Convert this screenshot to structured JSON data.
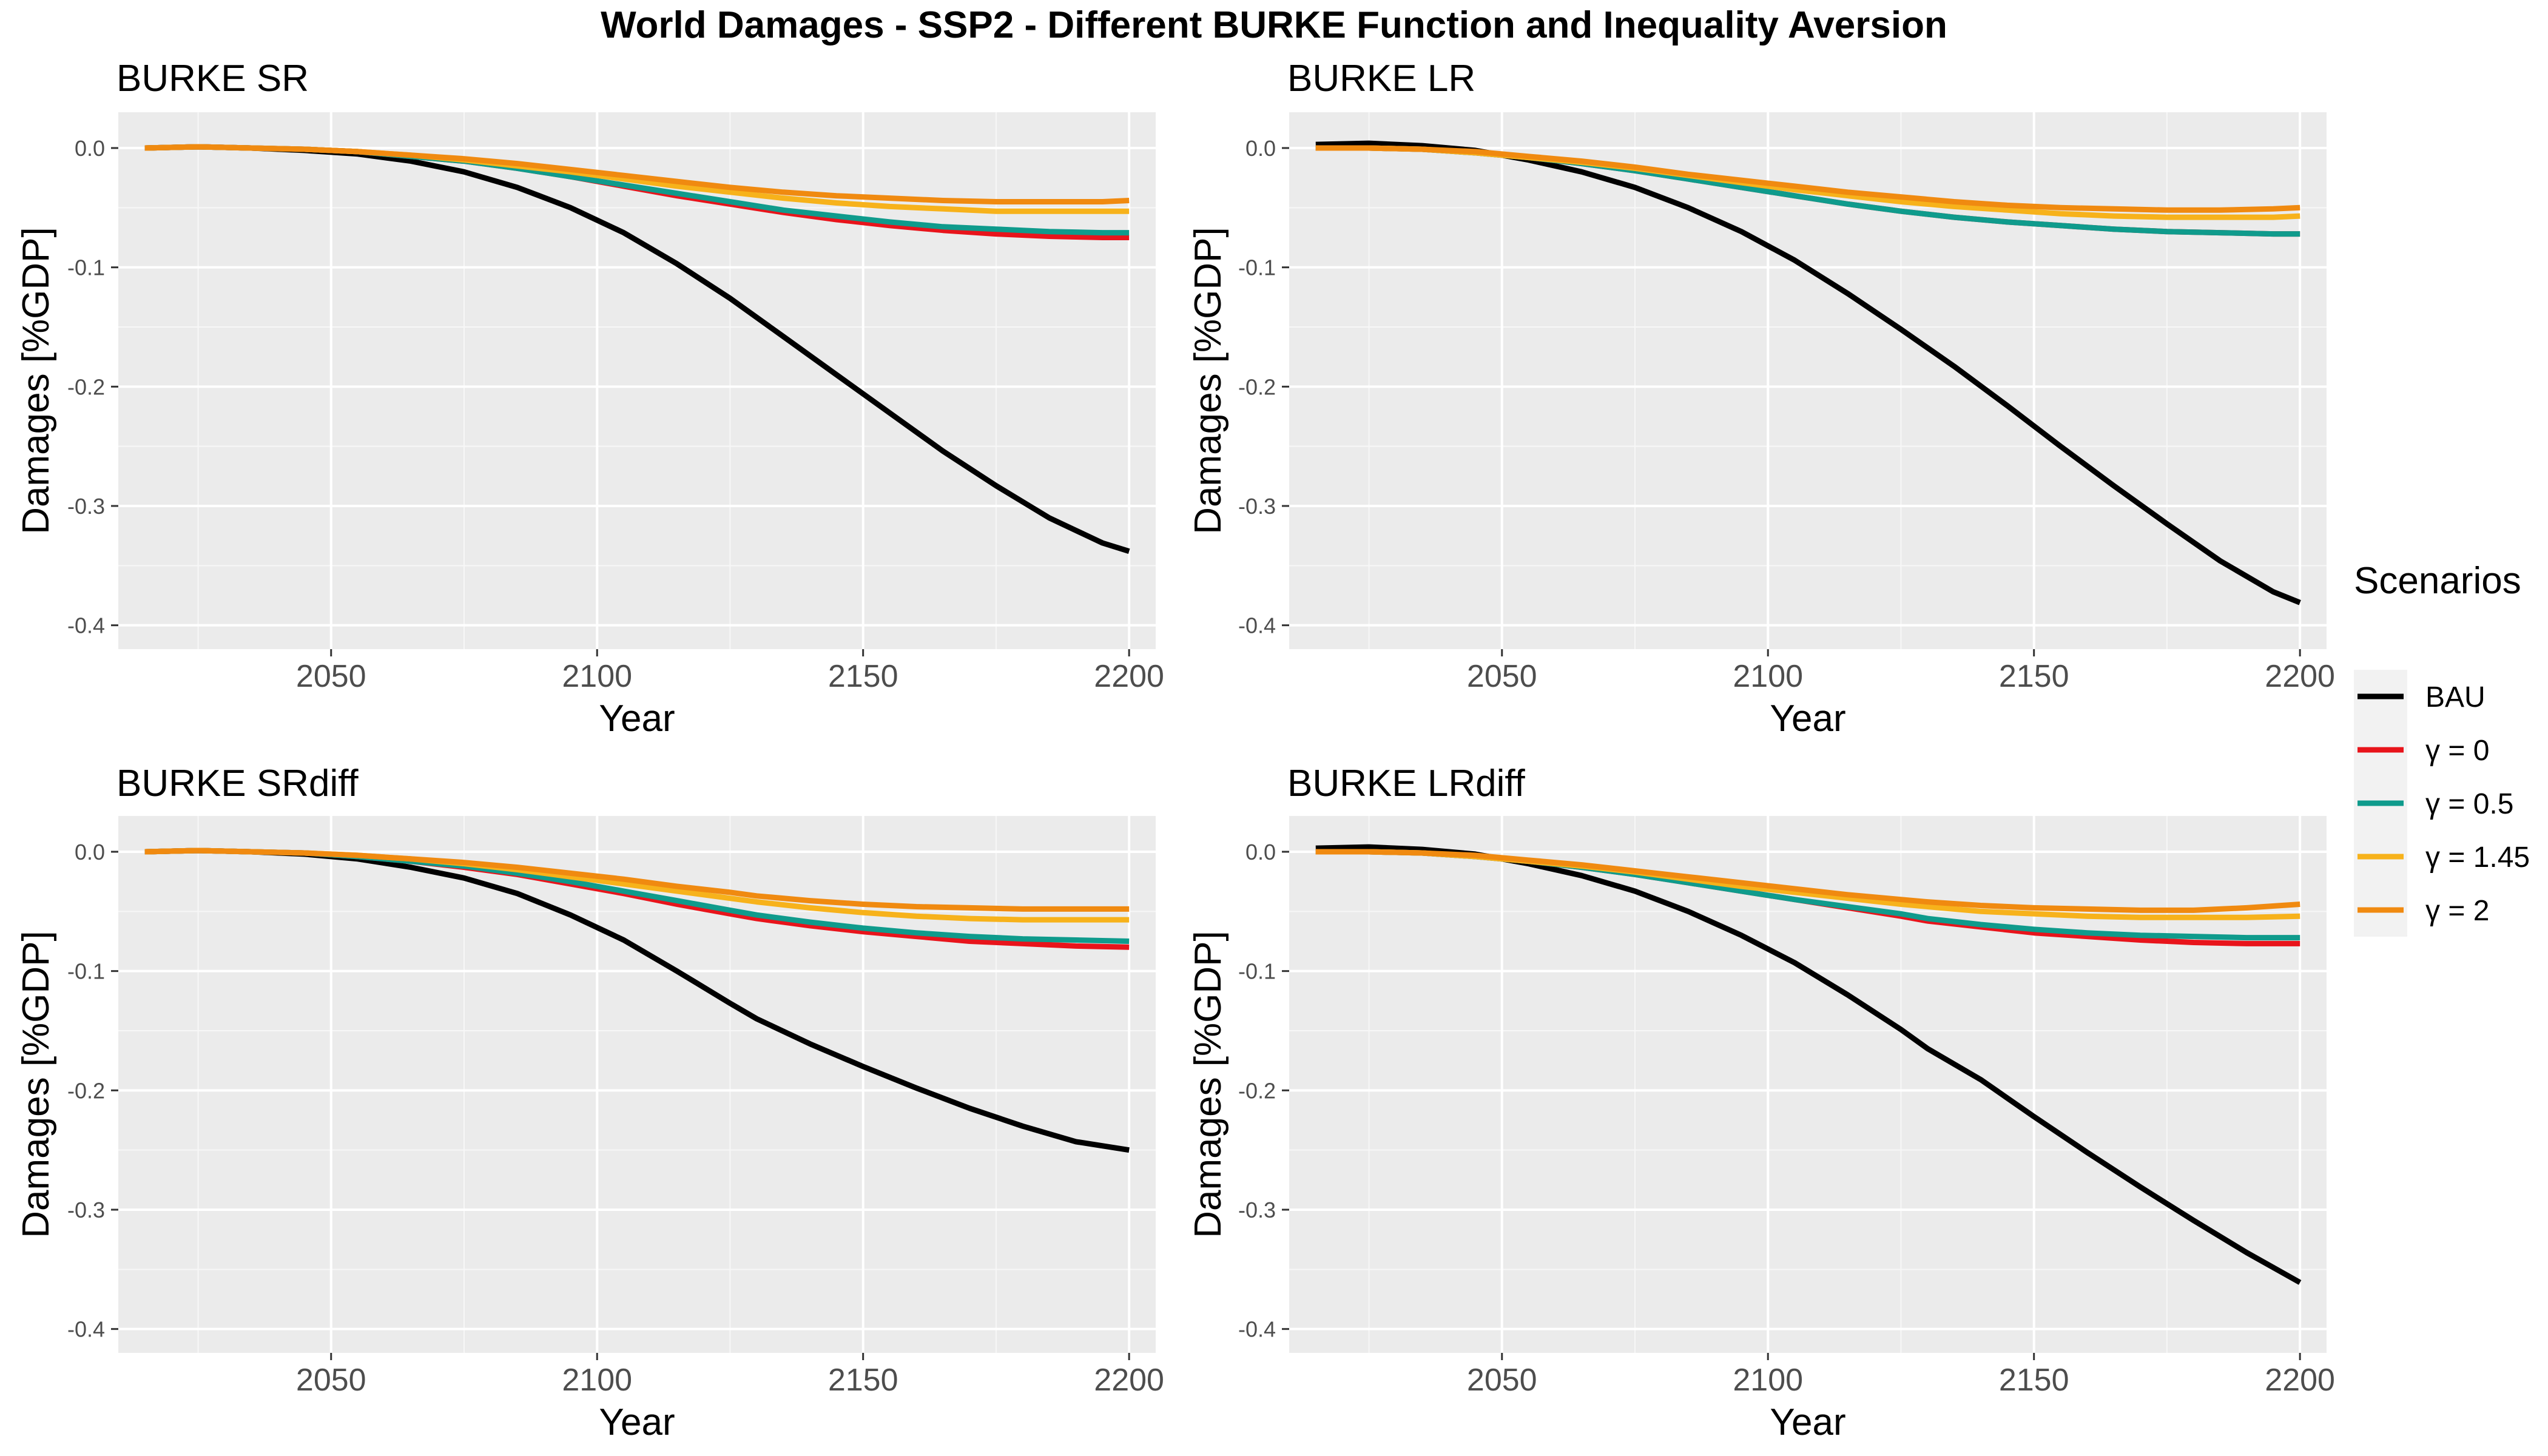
{
  "figure": {
    "title": "World Damages - SSP2 -  Different BURKE Function and Inequality Aversion"
  },
  "legend": {
    "title": "Scenarios",
    "entries": [
      {
        "label": "BAU",
        "color": "#000000"
      },
      {
        "label": "γ = 0",
        "color": "#E8141B"
      },
      {
        "label": "γ = 0.5",
        "color": "#0F9B8C"
      },
      {
        "label": "γ = 1.45",
        "color": "#F7B21B"
      },
      {
        "label": "γ = 2",
        "color": "#F08A10"
      }
    ]
  },
  "chart_data": [
    {
      "type": "line",
      "title": "BURKE SR",
      "xlabel": "Year",
      "ylabel": "Damages [%GDP]",
      "xlim": [
        2010,
        2205
      ],
      "ylim": [
        -0.42,
        0.03
      ],
      "x_ticks": [
        2050,
        2100,
        2150,
        2200
      ],
      "y_ticks": [
        0.0,
        -0.1,
        -0.2,
        -0.3,
        -0.4
      ],
      "x_tick_labels": [
        "2050",
        "2100",
        "2150",
        "2200"
      ],
      "y_tick_labels": [
        "0.0",
        "-0.1",
        "-0.2",
        "-0.3",
        "-0.4"
      ],
      "grid": true,
      "x": [
        2015,
        2025,
        2035,
        2045,
        2055,
        2065,
        2075,
        2085,
        2095,
        2105,
        2115,
        2125,
        2135,
        2145,
        2155,
        2165,
        2175,
        2185,
        2195,
        2200
      ],
      "series": [
        {
          "name": "BAU",
          "values": [
            0.0,
            0.001,
            0.0,
            -0.002,
            -0.005,
            -0.011,
            -0.02,
            -0.033,
            -0.05,
            -0.071,
            -0.097,
            -0.126,
            -0.158,
            -0.19,
            -0.222,
            -0.254,
            -0.283,
            -0.31,
            -0.331,
            -0.338
          ]
        },
        {
          "name": "γ = 0",
          "values": [
            0.0,
            0.001,
            0.0,
            -0.001,
            -0.003,
            -0.007,
            -0.011,
            -0.017,
            -0.024,
            -0.032,
            -0.04,
            -0.047,
            -0.054,
            -0.06,
            -0.065,
            -0.069,
            -0.072,
            -0.074,
            -0.075,
            -0.075
          ]
        },
        {
          "name": "γ = 0.5",
          "values": [
            0.0,
            0.001,
            0.0,
            -0.001,
            -0.003,
            -0.007,
            -0.011,
            -0.017,
            -0.024,
            -0.031,
            -0.038,
            -0.045,
            -0.052,
            -0.057,
            -0.062,
            -0.066,
            -0.068,
            -0.07,
            -0.071,
            -0.071
          ]
        },
        {
          "name": "γ = 1.45",
          "values": [
            0.0,
            0.001,
            0.0,
            -0.001,
            -0.003,
            -0.006,
            -0.01,
            -0.015,
            -0.02,
            -0.026,
            -0.032,
            -0.037,
            -0.042,
            -0.046,
            -0.049,
            -0.051,
            -0.053,
            -0.053,
            -0.053,
            -0.053
          ]
        },
        {
          "name": "γ = 2",
          "values": [
            0.0,
            0.001,
            0.0,
            -0.001,
            -0.003,
            -0.006,
            -0.009,
            -0.013,
            -0.018,
            -0.023,
            -0.028,
            -0.033,
            -0.037,
            -0.04,
            -0.042,
            -0.044,
            -0.045,
            -0.045,
            -0.045,
            -0.044
          ]
        }
      ]
    },
    {
      "type": "line",
      "title": "BURKE LR",
      "xlabel": "Year",
      "ylabel": "Damages [%GDP]",
      "xlim": [
        2010,
        2205
      ],
      "ylim": [
        -0.42,
        0.03
      ],
      "x_ticks": [
        2050,
        2100,
        2150,
        2200
      ],
      "y_ticks": [
        0.0,
        -0.1,
        -0.2,
        -0.3,
        -0.4
      ],
      "x_tick_labels": [
        "2050",
        "2100",
        "2150",
        "2200"
      ],
      "y_tick_labels": [
        "0.0",
        "-0.1",
        "-0.2",
        "-0.3",
        "-0.4"
      ],
      "grid": true,
      "x": [
        2015,
        2025,
        2035,
        2045,
        2055,
        2065,
        2075,
        2085,
        2095,
        2105,
        2115,
        2125,
        2135,
        2145,
        2155,
        2165,
        2175,
        2185,
        2195,
        2200
      ],
      "series": [
        {
          "name": "BAU",
          "values": [
            0.003,
            0.004,
            0.002,
            -0.002,
            -0.01,
            -0.02,
            -0.033,
            -0.05,
            -0.07,
            -0.094,
            -0.122,
            -0.152,
            -0.183,
            -0.216,
            -0.25,
            -0.283,
            -0.315,
            -0.346,
            -0.372,
            -0.381
          ]
        },
        {
          "name": "γ = 0",
          "values": [
            0.0,
            0.0,
            -0.001,
            -0.004,
            -0.008,
            -0.013,
            -0.019,
            -0.026,
            -0.033,
            -0.04,
            -0.047,
            -0.053,
            -0.058,
            -0.062,
            -0.065,
            -0.068,
            -0.07,
            -0.071,
            -0.072,
            -0.072
          ]
        },
        {
          "name": "γ = 0.5",
          "values": [
            0.0,
            0.0,
            -0.001,
            -0.004,
            -0.008,
            -0.013,
            -0.019,
            -0.026,
            -0.033,
            -0.04,
            -0.047,
            -0.053,
            -0.058,
            -0.062,
            -0.065,
            -0.068,
            -0.07,
            -0.071,
            -0.072,
            -0.072
          ]
        },
        {
          "name": "γ = 1.45",
          "values": [
            0.0,
            0.0,
            -0.001,
            -0.004,
            -0.008,
            -0.012,
            -0.017,
            -0.023,
            -0.029,
            -0.035,
            -0.04,
            -0.045,
            -0.049,
            -0.052,
            -0.055,
            -0.057,
            -0.058,
            -0.058,
            -0.058,
            -0.057
          ]
        },
        {
          "name": "γ = 2",
          "values": [
            0.0,
            0.0,
            -0.001,
            -0.003,
            -0.007,
            -0.011,
            -0.016,
            -0.022,
            -0.027,
            -0.032,
            -0.037,
            -0.041,
            -0.045,
            -0.048,
            -0.05,
            -0.051,
            -0.052,
            -0.052,
            -0.051,
            -0.05
          ]
        }
      ]
    },
    {
      "type": "line",
      "title": "BURKE SRdiff",
      "xlabel": "Year",
      "ylabel": "Damages [%GDP]",
      "xlim": [
        2010,
        2205
      ],
      "ylim": [
        -0.42,
        0.03
      ],
      "x_ticks": [
        2050,
        2100,
        2150,
        2200
      ],
      "y_ticks": [
        0.0,
        -0.1,
        -0.2,
        -0.3,
        -0.4
      ],
      "x_tick_labels": [
        "2050",
        "2100",
        "2150",
        "2200"
      ],
      "y_tick_labels": [
        "0.0",
        "-0.1",
        "-0.2",
        "-0.3",
        "-0.4"
      ],
      "grid": true,
      "x": [
        2015,
        2025,
        2035,
        2045,
        2055,
        2065,
        2075,
        2085,
        2095,
        2105,
        2115,
        2125,
        2130,
        2140,
        2150,
        2160,
        2170,
        2180,
        2190,
        2200
      ],
      "series": [
        {
          "name": "BAU",
          "values": [
            0.0,
            0.001,
            0.0,
            -0.002,
            -0.006,
            -0.013,
            -0.022,
            -0.035,
            -0.053,
            -0.074,
            -0.1,
            -0.127,
            -0.14,
            -0.161,
            -0.18,
            -0.198,
            -0.215,
            -0.23,
            -0.243,
            -0.25
          ]
        },
        {
          "name": "γ = 0",
          "values": [
            0.0,
            0.001,
            0.0,
            -0.001,
            -0.004,
            -0.008,
            -0.013,
            -0.019,
            -0.027,
            -0.035,
            -0.044,
            -0.052,
            -0.056,
            -0.062,
            -0.067,
            -0.071,
            -0.075,
            -0.077,
            -0.079,
            -0.08
          ]
        },
        {
          "name": "γ = 0.5",
          "values": [
            0.0,
            0.001,
            0.0,
            -0.001,
            -0.004,
            -0.008,
            -0.012,
            -0.018,
            -0.025,
            -0.033,
            -0.041,
            -0.049,
            -0.053,
            -0.059,
            -0.064,
            -0.068,
            -0.071,
            -0.073,
            -0.074,
            -0.075
          ]
        },
        {
          "name": "γ = 1.45",
          "values": [
            0.0,
            0.001,
            0.0,
            -0.001,
            -0.003,
            -0.006,
            -0.01,
            -0.015,
            -0.021,
            -0.027,
            -0.033,
            -0.039,
            -0.042,
            -0.047,
            -0.051,
            -0.054,
            -0.056,
            -0.057,
            -0.057,
            -0.057
          ]
        },
        {
          "name": "γ = 2",
          "values": [
            0.0,
            0.001,
            0.0,
            -0.001,
            -0.003,
            -0.006,
            -0.009,
            -0.013,
            -0.018,
            -0.023,
            -0.029,
            -0.034,
            -0.037,
            -0.041,
            -0.044,
            -0.046,
            -0.047,
            -0.048,
            -0.048,
            -0.048
          ]
        }
      ]
    },
    {
      "type": "line",
      "title": "BURKE LRdiff",
      "xlabel": "Year",
      "ylabel": "Damages [%GDP]",
      "xlim": [
        2010,
        2205
      ],
      "ylim": [
        -0.42,
        0.03
      ],
      "x_ticks": [
        2050,
        2100,
        2150,
        2200
      ],
      "y_ticks": [
        0.0,
        -0.1,
        -0.2,
        -0.3,
        -0.4
      ],
      "x_tick_labels": [
        "2050",
        "2100",
        "2150",
        "2200"
      ],
      "y_tick_labels": [
        "0.0",
        "-0.1",
        "-0.2",
        "-0.3",
        "-0.4"
      ],
      "grid": true,
      "x": [
        2015,
        2025,
        2035,
        2045,
        2055,
        2065,
        2075,
        2085,
        2095,
        2105,
        2115,
        2125,
        2130,
        2140,
        2150,
        2160,
        2170,
        2180,
        2190,
        2200
      ],
      "series": [
        {
          "name": "BAU",
          "values": [
            0.003,
            0.004,
            0.002,
            -0.002,
            -0.01,
            -0.02,
            -0.033,
            -0.05,
            -0.07,
            -0.093,
            -0.12,
            -0.149,
            -0.165,
            -0.191,
            -0.222,
            -0.252,
            -0.281,
            -0.309,
            -0.336,
            -0.361
          ]
        },
        {
          "name": "γ = 0",
          "values": [
            0.0,
            0.0,
            -0.001,
            -0.004,
            -0.008,
            -0.013,
            -0.019,
            -0.026,
            -0.033,
            -0.04,
            -0.047,
            -0.054,
            -0.058,
            -0.063,
            -0.068,
            -0.071,
            -0.074,
            -0.076,
            -0.077,
            -0.077
          ]
        },
        {
          "name": "γ = 0.5",
          "values": [
            0.0,
            0.0,
            -0.001,
            -0.004,
            -0.008,
            -0.013,
            -0.019,
            -0.026,
            -0.033,
            -0.04,
            -0.046,
            -0.052,
            -0.056,
            -0.061,
            -0.065,
            -0.068,
            -0.07,
            -0.071,
            -0.072,
            -0.072
          ]
        },
        {
          "name": "γ = 1.45",
          "values": [
            0.0,
            0.0,
            -0.001,
            -0.004,
            -0.008,
            -0.012,
            -0.017,
            -0.023,
            -0.029,
            -0.034,
            -0.039,
            -0.044,
            -0.046,
            -0.05,
            -0.052,
            -0.054,
            -0.055,
            -0.055,
            -0.055,
            -0.054
          ]
        },
        {
          "name": "γ = 2",
          "values": [
            0.0,
            0.0,
            -0.001,
            -0.003,
            -0.007,
            -0.011,
            -0.016,
            -0.021,
            -0.026,
            -0.031,
            -0.036,
            -0.04,
            -0.042,
            -0.045,
            -0.047,
            -0.048,
            -0.049,
            -0.049,
            -0.047,
            -0.044
          ]
        }
      ]
    }
  ]
}
